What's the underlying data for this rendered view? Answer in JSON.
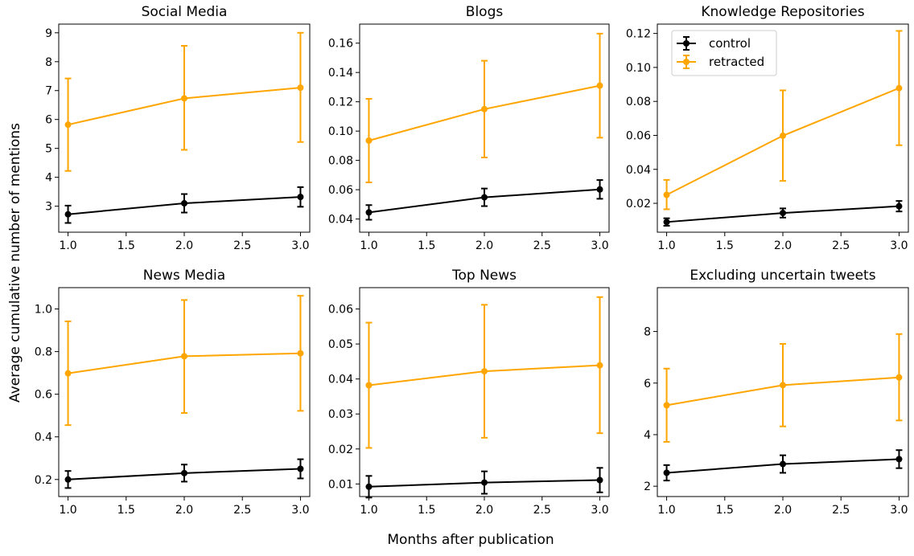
{
  "figure": {
    "ylabel": "Average cumulative number of mentions",
    "xlabel": "Months after publication"
  },
  "colors": {
    "control": "#000000",
    "retracted": "#ffa500"
  },
  "legend": {
    "placement": "upper-left",
    "panel": 2,
    "entries": [
      "control",
      "retracted"
    ]
  },
  "chart_data": [
    {
      "type": "line",
      "title": "Social Media",
      "x": [
        1.0,
        2.0,
        3.0
      ],
      "xlim": [
        0.92,
        3.08
      ],
      "xticks": [
        1.0,
        1.5,
        2.0,
        2.5,
        3.0
      ],
      "xtick_labels": [
        "1.0",
        "1.5",
        "2.0",
        "2.5",
        "3.0"
      ],
      "ylim": [
        2.1,
        9.3
      ],
      "yticks": [
        3,
        4,
        5,
        6,
        7,
        8,
        9
      ],
      "ytick_labels": [
        "3",
        "4",
        "5",
        "6",
        "7",
        "8",
        "9"
      ],
      "series": [
        {
          "name": "control",
          "values": [
            2.72,
            3.1,
            3.32
          ],
          "lower": [
            2.42,
            2.78,
            2.98
          ],
          "upper": [
            3.02,
            3.42,
            3.66
          ]
        },
        {
          "name": "retracted",
          "values": [
            5.82,
            6.73,
            7.1
          ],
          "lower": [
            4.22,
            4.95,
            5.22
          ],
          "upper": [
            7.42,
            8.55,
            9.0
          ]
        }
      ]
    },
    {
      "type": "line",
      "title": "Blogs",
      "x": [
        1.0,
        2.0,
        3.0
      ],
      "xlim": [
        0.92,
        3.08
      ],
      "xticks": [
        1.0,
        1.5,
        2.0,
        2.5,
        3.0
      ],
      "xtick_labels": [
        "1.0",
        "1.5",
        "2.0",
        "2.5",
        "3.0"
      ],
      "ylim": [
        0.031,
        0.173
      ],
      "yticks": [
        0.04,
        0.06,
        0.08,
        0.1,
        0.12,
        0.14,
        0.16
      ],
      "ytick_labels": [
        "0.04",
        "0.06",
        "0.08",
        "0.10",
        "0.12",
        "0.14",
        "0.16"
      ],
      "series": [
        {
          "name": "control",
          "values": [
            0.0445,
            0.0548,
            0.0602
          ],
          "lower": [
            0.0395,
            0.0488,
            0.0538
          ],
          "upper": [
            0.0495,
            0.0608,
            0.0666
          ]
        },
        {
          "name": "retracted",
          "values": [
            0.0935,
            0.115,
            0.131
          ],
          "lower": [
            0.065,
            0.082,
            0.0955
          ],
          "upper": [
            0.122,
            0.148,
            0.1665
          ]
        }
      ]
    },
    {
      "type": "line",
      "title": "Knowledge Repositories",
      "x": [
        1.0,
        2.0,
        3.0
      ],
      "xlim": [
        0.92,
        3.08
      ],
      "xticks": [
        1.0,
        1.5,
        2.0,
        2.5,
        3.0
      ],
      "xtick_labels": [
        "1.0",
        "1.5",
        "2.0",
        "2.5",
        "3.0"
      ],
      "ylim": [
        0.003,
        0.1255
      ],
      "yticks": [
        0.02,
        0.04,
        0.06,
        0.08,
        0.1,
        0.12
      ],
      "ytick_labels": [
        "0.02",
        "0.04",
        "0.06",
        "0.08",
        "0.10",
        "0.12"
      ],
      "series": [
        {
          "name": "control",
          "values": [
            0.009,
            0.0143,
            0.0183
          ],
          "lower": [
            0.0068,
            0.0116,
            0.0152
          ],
          "upper": [
            0.0112,
            0.017,
            0.0214
          ]
        },
        {
          "name": "retracted",
          "values": [
            0.025,
            0.0598,
            0.0878
          ],
          "lower": [
            0.0165,
            0.0332,
            0.0542
          ],
          "upper": [
            0.0338,
            0.0865,
            0.1215
          ]
        }
      ]
    },
    {
      "type": "line",
      "title": "News Media",
      "x": [
        1.0,
        2.0,
        3.0
      ],
      "xlim": [
        0.92,
        3.08
      ],
      "xticks": [
        1.0,
        1.5,
        2.0,
        2.5,
        3.0
      ],
      "xtick_labels": [
        "1.0",
        "1.5",
        "2.0",
        "2.5",
        "3.0"
      ],
      "ylim": [
        0.12,
        1.1
      ],
      "yticks": [
        0.2,
        0.4,
        0.6,
        0.8,
        1.0
      ],
      "ytick_labels": [
        "0.2",
        "0.4",
        "0.6",
        "0.8",
        "1.0"
      ],
      "series": [
        {
          "name": "control",
          "values": [
            0.2,
            0.23,
            0.25
          ],
          "lower": [
            0.16,
            0.19,
            0.205
          ],
          "upper": [
            0.24,
            0.27,
            0.295
          ]
        },
        {
          "name": "retracted",
          "values": [
            0.698,
            0.778,
            0.792
          ],
          "lower": [
            0.455,
            0.512,
            0.522
          ],
          "upper": [
            0.942,
            1.042,
            1.062
          ]
        }
      ]
    },
    {
      "type": "line",
      "title": "Top News",
      "x": [
        1.0,
        2.0,
        3.0
      ],
      "xlim": [
        0.92,
        3.08
      ],
      "xticks": [
        1.0,
        1.5,
        2.0,
        2.5,
        3.0
      ],
      "xtick_labels": [
        "1.0",
        "1.5",
        "2.0",
        "2.5",
        "3.0"
      ],
      "ylim": [
        0.0064,
        0.0661
      ],
      "yticks": [
        0.01,
        0.02,
        0.03,
        0.04,
        0.05,
        0.06
      ],
      "ytick_labels": [
        "0.01",
        "0.02",
        "0.03",
        "0.04",
        "0.05",
        "0.06"
      ],
      "series": [
        {
          "name": "control",
          "values": [
            0.0092,
            0.0104,
            0.0111
          ],
          "lower": [
            0.0061,
            0.0072,
            0.0076
          ],
          "upper": [
            0.0123,
            0.0136,
            0.0146
          ]
        },
        {
          "name": "retracted",
          "values": [
            0.0382,
            0.0422,
            0.0439
          ],
          "lower": [
            0.0203,
            0.0232,
            0.0245
          ],
          "upper": [
            0.0561,
            0.0612,
            0.0634
          ]
        }
      ]
    },
    {
      "type": "line",
      "title": "Excluding uncertain tweets",
      "x": [
        1.0,
        2.0,
        3.0
      ],
      "xlim": [
        0.92,
        3.08
      ],
      "xticks": [
        1.0,
        1.5,
        2.0,
        2.5,
        3.0
      ],
      "xtick_labels": [
        "1.0",
        "1.5",
        "2.0",
        "2.5",
        "3.0"
      ],
      "ylim": [
        1.6,
        9.7
      ],
      "yticks": [
        2,
        4,
        6,
        8
      ],
      "ytick_labels": [
        "2",
        "4",
        "6",
        "8"
      ],
      "series": [
        {
          "name": "control",
          "values": [
            2.52,
            2.86,
            3.05
          ],
          "lower": [
            2.22,
            2.52,
            2.7
          ],
          "upper": [
            2.82,
            3.2,
            3.4
          ]
        },
        {
          "name": "retracted",
          "values": [
            5.14,
            5.92,
            6.22
          ],
          "lower": [
            3.72,
            4.32,
            4.55
          ],
          "upper": [
            6.56,
            7.52,
            7.9
          ]
        }
      ]
    }
  ]
}
